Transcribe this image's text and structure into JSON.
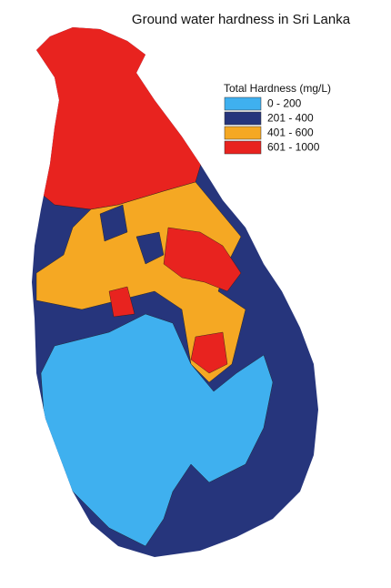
{
  "title": "Ground water hardness in Sri Lanka",
  "legend": {
    "title": "Total Hardness (mg/L)",
    "items": [
      {
        "label": "0 - 200",
        "color": "#3fb0ef"
      },
      {
        "label": "201 - 400",
        "color": "#26357c"
      },
      {
        "label": "401 - 600",
        "color": "#f5a823"
      },
      {
        "label": "601 - 1000",
        "color": "#e8231f"
      }
    ]
  }
}
